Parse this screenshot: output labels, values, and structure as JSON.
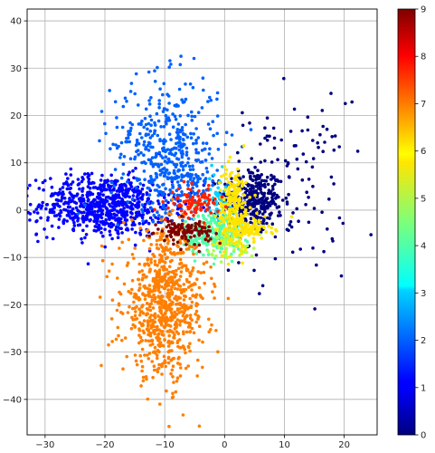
{
  "chart_data": {
    "type": "scatter",
    "title": "",
    "xlabel": "",
    "ylabel": "",
    "xlim": [
      -33,
      25.5
    ],
    "ylim": [
      -47.5,
      42.5
    ],
    "xticks": [
      -30,
      -20,
      -10,
      0,
      10,
      20
    ],
    "yticks": [
      -40,
      -30,
      -20,
      -10,
      0,
      10,
      20,
      30,
      40
    ],
    "grid": true,
    "colorbar": {
      "colormap": "jet",
      "range": [
        0,
        9
      ],
      "ticks": [
        0,
        1,
        2,
        3,
        4,
        5,
        6,
        7,
        8,
        9
      ],
      "location": "right"
    },
    "clusters": [
      {
        "class": 0,
        "color": "#00007f",
        "count": 330,
        "center": [
          4.5,
          2.0
        ],
        "spread": [
          2.5,
          3.5
        ]
      },
      {
        "class": 0,
        "color": "#00007f",
        "count": 130,
        "center": [
          10.5,
          5.0
        ],
        "spread": [
          5.0,
          9.0
        ]
      },
      {
        "class": 1,
        "color": "#0000ff",
        "count": 720,
        "center": [
          -20.0,
          1.0
        ],
        "spread": [
          5.5,
          3.2
        ]
      },
      {
        "class": 2,
        "color": "#0061ff",
        "count": 380,
        "center": [
          -10.0,
          14.0
        ],
        "spread": [
          4.5,
          7.0
        ]
      },
      {
        "class": 2,
        "color": "#0061ff",
        "count": 130,
        "center": [
          -7.0,
          5.5
        ],
        "spread": [
          3.0,
          3.0
        ]
      },
      {
        "class": 3,
        "color": "#00d4ff",
        "count": 60,
        "center": [
          -1.0,
          2.0
        ],
        "spread": [
          1.0,
          3.0
        ]
      },
      {
        "class": 4,
        "color": "#4dffaa",
        "count": 250,
        "center": [
          -2.0,
          -5.0
        ],
        "spread": [
          2.5,
          2.2
        ]
      },
      {
        "class": 5,
        "color": "#aaff4d",
        "count": 70,
        "center": [
          1.0,
          -7.0
        ],
        "spread": [
          2.0,
          1.6
        ]
      },
      {
        "class": 6,
        "color": "#ffe500",
        "count": 230,
        "center": [
          1.5,
          0.5
        ],
        "spread": [
          1.3,
          4.5
        ]
      },
      {
        "class": 6,
        "color": "#ffe500",
        "count": 90,
        "center": [
          4.0,
          -4.0
        ],
        "spread": [
          2.0,
          1.2
        ]
      },
      {
        "class": 7,
        "color": "#ff7f00",
        "count": 780,
        "center": [
          -10.0,
          -20.0
        ],
        "spread": [
          3.5,
          7.5
        ]
      },
      {
        "class": 8,
        "color": "#ff2000",
        "count": 90,
        "center": [
          -5.0,
          1.5
        ],
        "spread": [
          2.0,
          1.5
        ]
      },
      {
        "class": 9,
        "color": "#7f0000",
        "count": 110,
        "center": [
          -6.5,
          -4.5
        ],
        "spread": [
          2.2,
          1.2
        ]
      }
    ]
  }
}
